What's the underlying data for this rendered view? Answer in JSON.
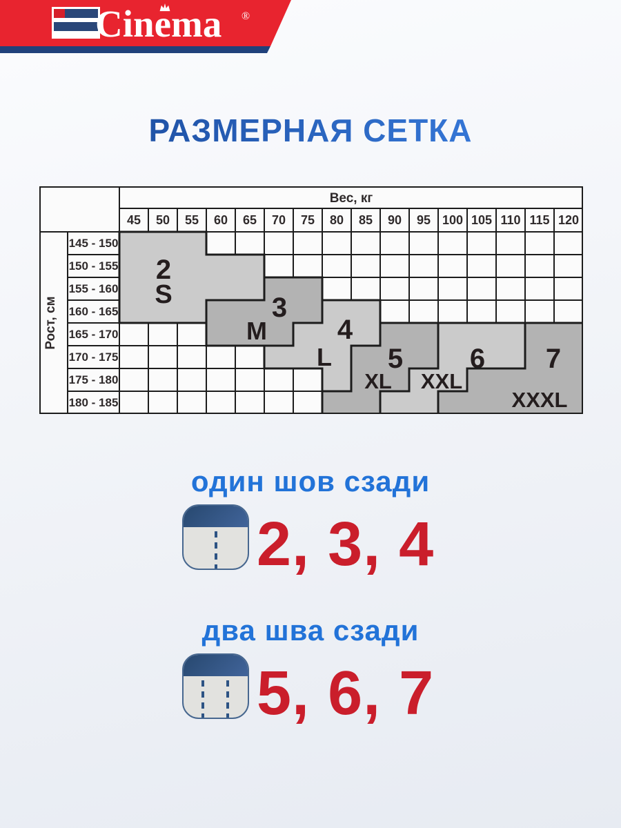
{
  "brand": {
    "logo_text": "Cinema",
    "registered_mark": "®"
  },
  "title": "РАЗМЕРНАЯ СЕТКА",
  "table": {
    "weight_header": "Вес, кг",
    "height_header": "Рост, см",
    "weights": [
      "45",
      "50",
      "55",
      "60",
      "65",
      "70",
      "75",
      "80",
      "85",
      "90",
      "95",
      "100",
      "105",
      "110",
      "115",
      "120"
    ],
    "heights": [
      "145 - 150",
      "150 - 155",
      "155 - 160",
      "160 - 165",
      "165 - 170",
      "170 - 175",
      "175 - 180",
      "180 - 185"
    ],
    "sizes": [
      {
        "number": "2",
        "letter": "S",
        "shade": "light",
        "cells": [
          {
            "row": 1,
            "from": "45",
            "to": "55"
          },
          {
            "row": 2,
            "from": "45",
            "to": "65"
          },
          {
            "row": 3,
            "from": "45",
            "to": "65"
          },
          {
            "row": 4,
            "from": "45",
            "to": "55"
          }
        ]
      },
      {
        "number": "3",
        "letter": "M",
        "shade": "dark",
        "cells": [
          {
            "row": 3,
            "from": "70",
            "to": "75"
          },
          {
            "row": 4,
            "from": "60",
            "to": "75"
          },
          {
            "row": 5,
            "from": "60",
            "to": "70"
          }
        ]
      },
      {
        "number": "4",
        "letter": "L",
        "shade": "light",
        "cells": [
          {
            "row": 4,
            "from": "80",
            "to": "85"
          },
          {
            "row": 5,
            "from": "75",
            "to": "85"
          },
          {
            "row": 6,
            "from": "70",
            "to": "80"
          },
          {
            "row": 7,
            "from": "80",
            "to": "80"
          }
        ]
      },
      {
        "number": "5",
        "letter": "XL",
        "shade": "dark",
        "cells": [
          {
            "row": 5,
            "from": "90",
            "to": "95"
          },
          {
            "row": 6,
            "from": "85",
            "to": "95"
          },
          {
            "row": 7,
            "from": "85",
            "to": "90"
          },
          {
            "row": 8,
            "from": "80",
            "to": "85"
          }
        ]
      },
      {
        "number": "6",
        "letter": "XXL",
        "shade": "light",
        "cells": [
          {
            "row": 5,
            "from": "100",
            "to": "110"
          },
          {
            "row": 6,
            "from": "100",
            "to": "110"
          },
          {
            "row": 7,
            "from": "95",
            "to": "100"
          },
          {
            "row": 8,
            "from": "90",
            "to": "95"
          }
        ]
      },
      {
        "number": "7",
        "letter": "XXXL",
        "shade": "dark",
        "cells": [
          {
            "row": 5,
            "from": "115",
            "to": "120"
          },
          {
            "row": 6,
            "from": "115",
            "to": "120"
          },
          {
            "row": 7,
            "from": "105",
            "to": "120"
          },
          {
            "row": 8,
            "from": "100",
            "to": "120"
          }
        ]
      }
    ]
  },
  "sections": [
    {
      "heading": "один шов сзади",
      "sizes_text": "2, 3, 4",
      "seam_count": 1
    },
    {
      "heading": "два шва сзади",
      "sizes_text": "5, 6, 7",
      "seam_count": 2
    }
  ],
  "colors": {
    "banner_red": "#e8242f",
    "banner_navy": "#20417b",
    "flag_navy": "#2a4779",
    "flag_red": "#d6202b",
    "title_blue": "#2565c4",
    "heading_blue": "#2273d8",
    "number_red": "#ca1e2b",
    "region_light": "#cbcbcb",
    "region_dark": "#b3b3b3",
    "grid": "#1c1c1c",
    "table_bg": "#fbfbfb",
    "table_text": "#2f2a2b",
    "label_text": "#241d1e",
    "icon_navy": "#2b4d74",
    "seam_blue": "#2d5384"
  }
}
